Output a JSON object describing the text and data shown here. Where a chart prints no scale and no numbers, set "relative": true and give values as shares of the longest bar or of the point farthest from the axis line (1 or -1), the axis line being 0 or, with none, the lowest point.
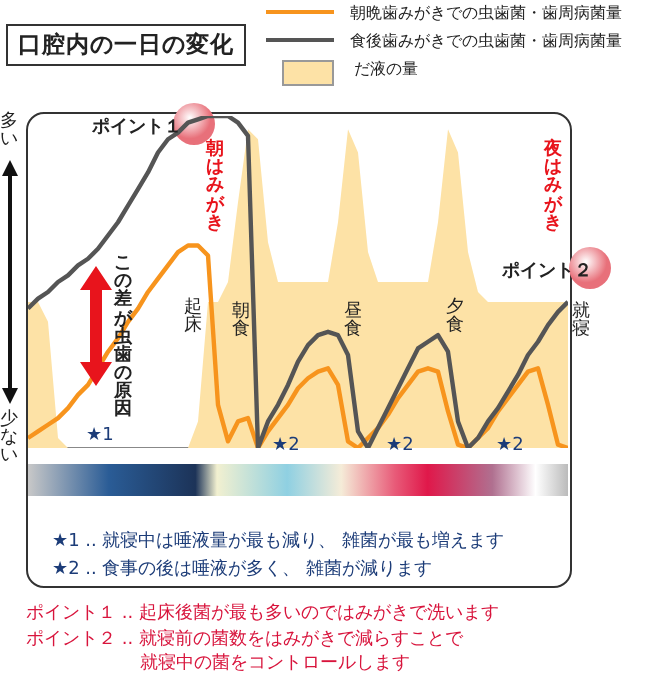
{
  "chart_data": {
    "type": "line",
    "title": "口腔内の一日の変化",
    "relative": true,
    "marker": "none",
    "legend": "top right",
    "categories": [
      null,
      null,
      null,
      null,
      null,
      null,
      null,
      null,
      null,
      null,
      null,
      null,
      null,
      null,
      null,
      null,
      null,
      null,
      null,
      null,
      null,
      null,
      null,
      null,
      null,
      null,
      null,
      null,
      null,
      null,
      null,
      null,
      null,
      null,
      null,
      null,
      null,
      null,
      null,
      null,
      null,
      null,
      null,
      null,
      null,
      null,
      null,
      null,
      null,
      null,
      null,
      null,
      null,
      null,
      null
    ],
    "series": [
      {
        "name": "だ液の量",
        "type": "area",
        "color": "#fde2a6",
        "values": [
          0.44,
          0.44,
          0.38,
          0.03,
          0,
          0,
          0,
          0,
          0,
          0,
          0,
          0,
          0,
          0,
          0,
          0,
          0,
          0.08,
          0.44,
          0.44,
          0.5,
          0.74,
          0.96,
          0.93,
          0.62,
          0.5,
          0.5,
          0.5,
          0.5,
          0.5,
          0.5,
          0.68,
          0.96,
          0.89,
          0.59,
          0.5,
          0.5,
          0.5,
          0.5,
          0.5,
          0.5,
          0.68,
          0.96,
          0.89,
          0.59,
          0.47,
          0.44,
          0.44,
          0.44,
          0.44,
          0.44,
          0.44,
          0.44,
          0.44,
          0.44
        ]
      },
      {
        "name": "食後歯みがきでの虫歯菌・歯周病菌量",
        "color": "#555555",
        "values": [
          0.42,
          0.45,
          0.47,
          0.5,
          0.52,
          0.55,
          0.57,
          0.6,
          0.64,
          0.68,
          0.73,
          0.78,
          0.83,
          0.89,
          0.93,
          0.95,
          0.98,
          0.99,
          1,
          1,
          1,
          0.98,
          0.94,
          0,
          0.08,
          0.13,
          0.19,
          0.26,
          0.31,
          0.34,
          0.35,
          0.34,
          0.28,
          0.05,
          0,
          0.06,
          0.12,
          0.18,
          0.24,
          0.3,
          0.32,
          0.34,
          0.29,
          0.08,
          0,
          0.03,
          0.08,
          0.12,
          0.17,
          0.22,
          0.28,
          0.32,
          0.37,
          0.41,
          0.44
        ]
      },
      {
        "name": "朝晩歯みがきでの虫歯菌・歯周病菌量",
        "color": "#f7941d",
        "values": [
          0.03,
          0.05,
          0.07,
          0.09,
          0.12,
          0.16,
          0.19,
          0.24,
          0.29,
          0.33,
          0.38,
          0.42,
          0.47,
          0.51,
          0.55,
          0.59,
          0.61,
          0.61,
          0.58,
          0.13,
          0.02,
          0.08,
          0.09,
          0,
          0.05,
          0.09,
          0.13,
          0.18,
          0.21,
          0.23,
          0.24,
          0.19,
          0.02,
          0,
          0.03,
          0.06,
          0.1,
          0.15,
          0.19,
          0.23,
          0.24,
          0.23,
          0.11,
          0.01,
          0,
          0.03,
          0.06,
          0.11,
          0.15,
          0.19,
          0.23,
          0.24,
          0.13,
          0.01,
          0
        ]
      }
    ],
    "annotations": [
      "ポイント１",
      "朝はみがき",
      "この差が虫歯の原因",
      "★1",
      "起床",
      "朝食",
      "昼食",
      "夕食",
      "就寝",
      "夜はみがき",
      "ポイント２",
      "★2",
      "★2",
      "★2",
      "多い",
      "少ない",
      "★1 .. 就寝中は唾液量が最も減り、 雑菌が最も増えます",
      "★2 .. 食事の後は唾液が多く、 雑菌が減ります",
      "ポイント１ .. 起床後菌が最も多いのではみがきで洗います",
      "ポイント２ .. 就寝前の菌数をはみがきで減らすことで就寝中の菌をコントロールします"
    ]
  }
}
